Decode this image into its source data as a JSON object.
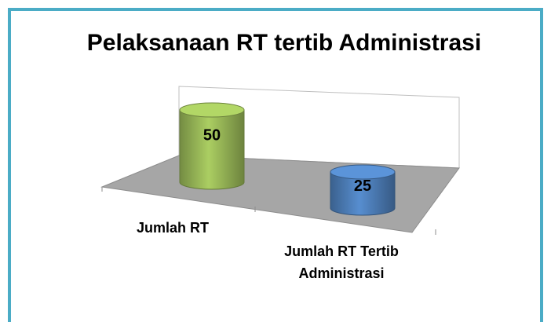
{
  "chart_data": {
    "type": "bar3d",
    "title": "Pelaksanaan RT tertib Administrasi",
    "categories": [
      "Jumlah RT",
      "Jumlah RT Tertib Administrasi"
    ],
    "values": [
      50,
      25
    ],
    "colors": [
      "#9bbb59",
      "#4f81bd"
    ]
  }
}
